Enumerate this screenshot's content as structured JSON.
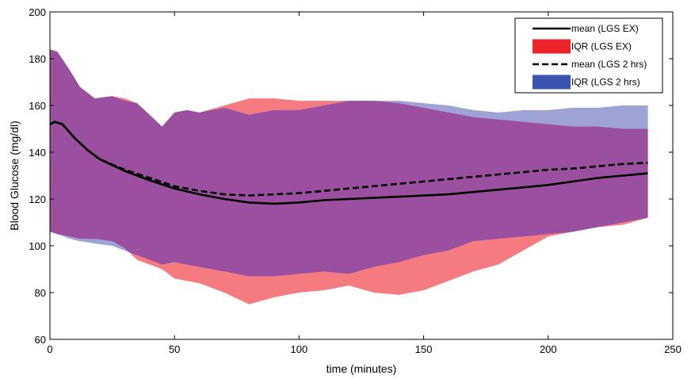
{
  "chart_data": {
    "type": "area",
    "title": "",
    "xlabel": "time (minutes)",
    "ylabel": "Blood Glucose (mg/dl)",
    "xlim": [
      0,
      250
    ],
    "ylim": [
      60,
      200
    ],
    "xticks": [
      0,
      50,
      100,
      150,
      200,
      250
    ],
    "yticks": [
      60,
      80,
      100,
      120,
      140,
      160,
      180,
      200
    ],
    "xtick_labels": [
      "0",
      "50",
      "100",
      "150",
      "200",
      "250"
    ],
    "ytick_labels": [
      "60",
      "80",
      "100",
      "120",
      "140",
      "160",
      "180",
      "200"
    ],
    "grid": false,
    "legend_placement": "top-right",
    "colors": {
      "iqr_ex": "#f47c80",
      "iqr_2hrs": "#9ea2d4",
      "overlap": "#9b4f9f",
      "mean": "#000000"
    },
    "series": [
      {
        "name": "mean (LGS EX)",
        "kind": "line",
        "style": "solid",
        "x": [
          0,
          2,
          5,
          10,
          15,
          20,
          30,
          40,
          50,
          60,
          70,
          80,
          90,
          100,
          110,
          120,
          130,
          140,
          150,
          160,
          170,
          180,
          190,
          200,
          210,
          220,
          230,
          240
        ],
        "y": [
          152,
          153,
          152,
          146,
          141,
          137,
          132,
          128,
          124.5,
          122,
          120,
          118.5,
          118,
          118.5,
          119.5,
          120,
          120.5,
          121,
          121.5,
          122,
          123,
          124,
          125,
          126,
          127.5,
          129,
          130,
          131
        ]
      },
      {
        "name": "IQR (LGS EX)",
        "kind": "band",
        "x": [
          0,
          3,
          8,
          12,
          18,
          25,
          30,
          35,
          40,
          45,
          50,
          55,
          60,
          70,
          80,
          90,
          100,
          110,
          120,
          130,
          140,
          150,
          160,
          170,
          180,
          190,
          200,
          210,
          220,
          230,
          240
        ],
        "upper": [
          184,
          183,
          175,
          168,
          163,
          164,
          163,
          161,
          156,
          151,
          157,
          158,
          157,
          160,
          163,
          163,
          162,
          162,
          162,
          162,
          161,
          159,
          157,
          155,
          154,
          153,
          152,
          151,
          151,
          150,
          150
        ],
        "lower": [
          106,
          105,
          104,
          103,
          103,
          102,
          99,
          94,
          92,
          90,
          86,
          85,
          84,
          80,
          75,
          78,
          80,
          81,
          83,
          80,
          79,
          81,
          85,
          89,
          92,
          98,
          104,
          106,
          108,
          109,
          112
        ]
      },
      {
        "name": "mean (LGS 2 hrs)",
        "kind": "line",
        "style": "dashed",
        "x": [
          0,
          2,
          5,
          10,
          15,
          20,
          30,
          40,
          50,
          60,
          70,
          80,
          90,
          100,
          110,
          120,
          130,
          140,
          150,
          160,
          170,
          180,
          190,
          200,
          210,
          220,
          230,
          240
        ],
        "y": [
          152,
          153,
          152,
          146,
          141,
          137,
          132.5,
          129,
          125.5,
          123.5,
          122,
          121.5,
          122,
          122.5,
          123.5,
          124.5,
          125.5,
          126.5,
          127.5,
          128.5,
          129.5,
          130.5,
          131.5,
          132.5,
          133,
          134,
          135,
          135.5
        ]
      },
      {
        "name": "IQR (LGS 2 hrs)",
        "kind": "band",
        "x": [
          0,
          3,
          8,
          12,
          18,
          25,
          30,
          35,
          40,
          45,
          50,
          55,
          60,
          70,
          80,
          90,
          100,
          110,
          120,
          130,
          140,
          150,
          160,
          170,
          180,
          190,
          200,
          210,
          220,
          230,
          240
        ],
        "upper": [
          184,
          183,
          175,
          168,
          163,
          164,
          162,
          161,
          156,
          151,
          157,
          158,
          157,
          159,
          156,
          158,
          158,
          160,
          162,
          162,
          162,
          161,
          160,
          158,
          157,
          158,
          158,
          159,
          159,
          160,
          160
        ],
        "lower": [
          106,
          105,
          103,
          102,
          101,
          100,
          98,
          96,
          94,
          92,
          93,
          92,
          91,
          89,
          87,
          87,
          88,
          89,
          88,
          91,
          93,
          96,
          98,
          102,
          103,
          104,
          105,
          106,
          108,
          110,
          112
        ]
      }
    ]
  }
}
